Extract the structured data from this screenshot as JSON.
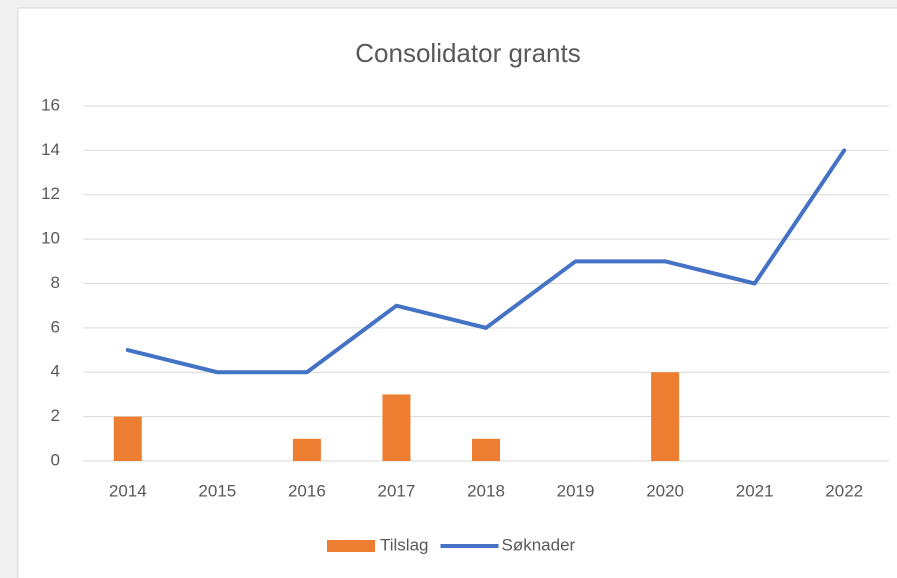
{
  "chart_data": {
    "type": "combo",
    "title": "Consolidator grants",
    "categories": [
      "2014",
      "2015",
      "2016",
      "2017",
      "2018",
      "2019",
      "2020",
      "2021",
      "2022"
    ],
    "series": [
      {
        "name": "Tilslag",
        "type": "bar",
        "color": "#ed7d31",
        "values": [
          2,
          0,
          1,
          3,
          1,
          0,
          4,
          0,
          0
        ]
      },
      {
        "name": "Søknader",
        "type": "line",
        "color": "#4472c4",
        "values": [
          5,
          4,
          4,
          7,
          6,
          9,
          9,
          8,
          14
        ]
      }
    ],
    "ylim": [
      0,
      16
    ],
    "yticks": [
      0,
      2,
      4,
      6,
      8,
      10,
      12,
      14,
      16
    ],
    "grid": true,
    "legend": "bottom"
  }
}
